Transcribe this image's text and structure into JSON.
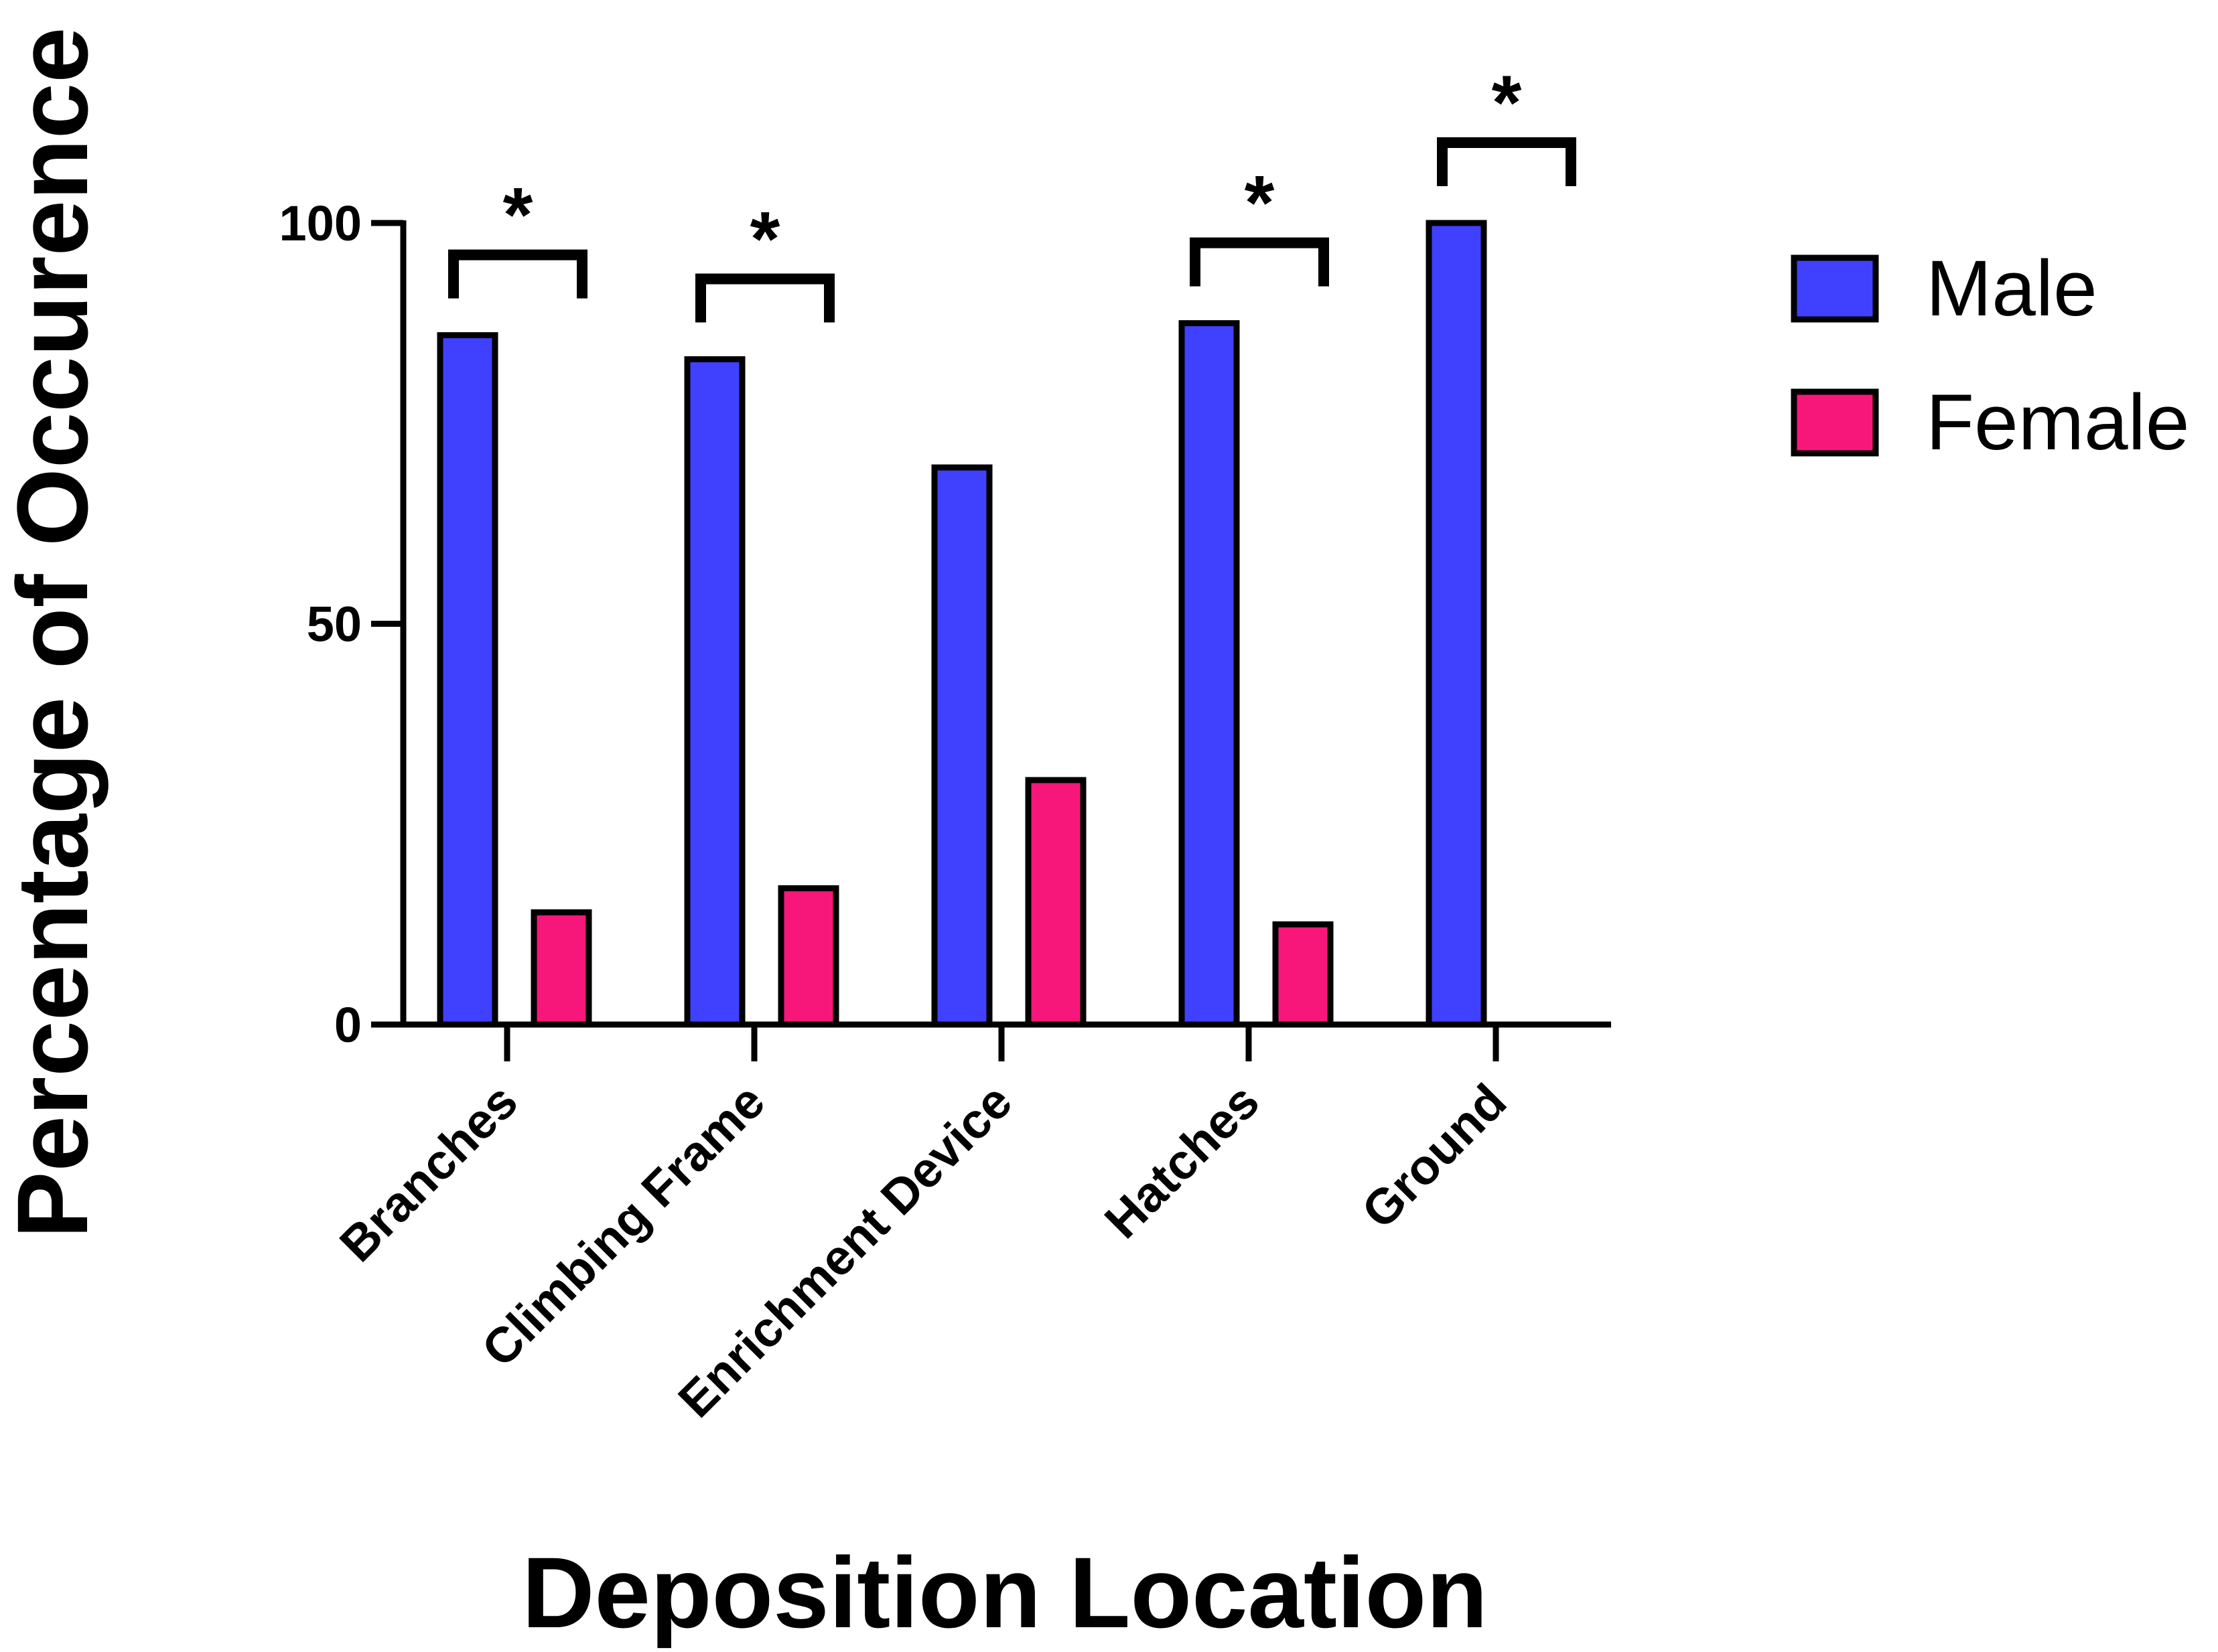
{
  "chart_data": {
    "type": "bar",
    "xlabel": "Deposition Location",
    "ylabel": "Percentage of Occurence",
    "categories": [
      "Branches",
      "Climbing Frame",
      "Enrichment Device",
      "Hatches",
      "Ground"
    ],
    "series": [
      {
        "name": "Male",
        "color": "#4040ff",
        "values": [
          86,
          83,
          69.5,
          87.5,
          100
        ]
      },
      {
        "name": "Female",
        "color": "#f7167a",
        "values": [
          14,
          17,
          30.5,
          12.5,
          0
        ]
      }
    ],
    "ylim": [
      0,
      100
    ],
    "yticks": [
      0,
      50,
      100
    ],
    "significance": [
      {
        "category": "Branches",
        "label": "*"
      },
      {
        "category": "Climbing Frame",
        "label": "*"
      },
      {
        "category": "Hatches",
        "label": "*"
      },
      {
        "category": "Ground",
        "label": "*"
      }
    ],
    "legend_position": "top-right",
    "grid": false
  }
}
